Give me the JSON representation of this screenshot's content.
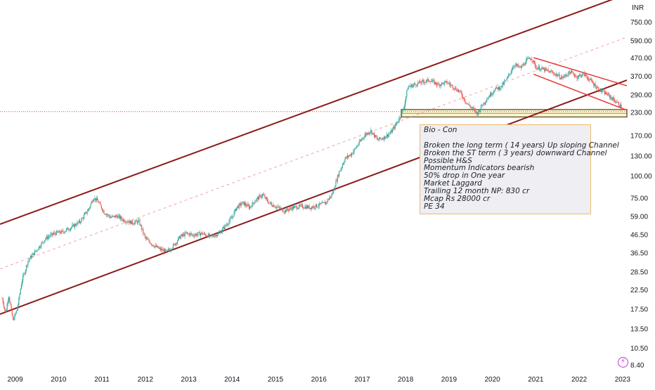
{
  "chart_data": {
    "type": "candlestick",
    "currency_label": "INR",
    "y_scale": "log",
    "ylim": [
      7.6,
      1000
    ],
    "y_ticks": [
      "750.00",
      "590.00",
      "470.00",
      "370.00",
      "290.00",
      "230.00",
      "170.00",
      "130.00",
      "100.00",
      "75.00",
      "59.00",
      "46.50",
      "36.50",
      "28.50",
      "22.50",
      "17.50",
      "13.50",
      "10.50",
      "8.40"
    ],
    "x_ticks": [
      "2009",
      "2010",
      "2011",
      "2012",
      "2013",
      "2014",
      "2015",
      "2016",
      "2017",
      "2018",
      "2019",
      "2020",
      "2021",
      "2022",
      "2023"
    ],
    "x_range_years": [
      2008.65,
      2023.1
    ],
    "current_price_line": 232,
    "price_path": [
      [
        2008.7,
        20
      ],
      [
        2008.78,
        16.5
      ],
      [
        2008.85,
        21
      ],
      [
        2008.95,
        15
      ],
      [
        2009.05,
        17.5
      ],
      [
        2009.15,
        25
      ],
      [
        2009.3,
        33
      ],
      [
        2009.5,
        38
      ],
      [
        2009.7,
        44
      ],
      [
        2009.9,
        47
      ],
      [
        2010.1,
        48
      ],
      [
        2010.3,
        51
      ],
      [
        2010.5,
        55
      ],
      [
        2010.7,
        65
      ],
      [
        2010.8,
        75
      ],
      [
        2010.9,
        72
      ],
      [
        2011.05,
        62
      ],
      [
        2011.2,
        58
      ],
      [
        2011.35,
        59
      ],
      [
        2011.5,
        56
      ],
      [
        2011.7,
        54
      ],
      [
        2011.85,
        55
      ],
      [
        2012.0,
        44
      ],
      [
        2012.1,
        42
      ],
      [
        2012.2,
        40
      ],
      [
        2012.35,
        38
      ],
      [
        2012.5,
        37
      ],
      [
        2012.65,
        40
      ],
      [
        2012.8,
        45
      ],
      [
        2012.95,
        47
      ],
      [
        2013.1,
        46
      ],
      [
        2013.3,
        47
      ],
      [
        2013.5,
        45
      ],
      [
        2013.7,
        47
      ],
      [
        2013.85,
        52
      ],
      [
        2014.0,
        58
      ],
      [
        2014.1,
        66
      ],
      [
        2014.25,
        70
      ],
      [
        2014.4,
        66
      ],
      [
        2014.55,
        73
      ],
      [
        2014.7,
        78
      ],
      [
        2014.85,
        70
      ],
      [
        2015.0,
        67
      ],
      [
        2015.2,
        63
      ],
      [
        2015.4,
        66
      ],
      [
        2015.6,
        67
      ],
      [
        2015.8,
        66
      ],
      [
        2016.0,
        68
      ],
      [
        2016.15,
        70
      ],
      [
        2016.3,
        78
      ],
      [
        2016.45,
        102
      ],
      [
        2016.6,
        125
      ],
      [
        2016.75,
        133
      ],
      [
        2016.9,
        150
      ],
      [
        2017.05,
        170
      ],
      [
        2017.2,
        180
      ],
      [
        2017.35,
        160
      ],
      [
        2017.5,
        165
      ],
      [
        2017.65,
        175
      ],
      [
        2017.8,
        200
      ],
      [
        2017.95,
        240
      ],
      [
        2018.05,
        320
      ],
      [
        2018.2,
        330
      ],
      [
        2018.35,
        340
      ],
      [
        2018.55,
        350
      ],
      [
        2018.75,
        330
      ],
      [
        2018.95,
        340
      ],
      [
        2019.1,
        320
      ],
      [
        2019.25,
        300
      ],
      [
        2019.4,
        260
      ],
      [
        2019.55,
        240
      ],
      [
        2019.65,
        225
      ],
      [
        2019.75,
        250
      ],
      [
        2019.9,
        280
      ],
      [
        2020.05,
        310
      ],
      [
        2020.2,
        320
      ],
      [
        2020.35,
        360
      ],
      [
        2020.5,
        430
      ],
      [
        2020.65,
        410
      ],
      [
        2020.8,
        455
      ],
      [
        2020.9,
        470
      ],
      [
        2021.0,
        415
      ],
      [
        2021.2,
        400
      ],
      [
        2021.4,
        385
      ],
      [
        2021.6,
        360
      ],
      [
        2021.8,
        390
      ],
      [
        2021.95,
        365
      ],
      [
        2022.1,
        380
      ],
      [
        2022.25,
        350
      ],
      [
        2022.45,
        310
      ],
      [
        2022.65,
        290
      ],
      [
        2022.8,
        270
      ],
      [
        2022.95,
        250
      ],
      [
        2023.0,
        236
      ]
    ],
    "long_term_channel": {
      "upper": [
        [
          2008.65,
          53
        ],
        [
          2023.1,
          1080
        ]
      ],
      "lower": [
        [
          2008.65,
          16.3
        ],
        [
          2023.1,
          350
        ]
      ],
      "mid": [
        [
          2008.65,
          29.5
        ],
        [
          2023.1,
          615
        ]
      ]
    },
    "short_term_channel": {
      "upper": [
        [
          2020.95,
          470
        ],
        [
          2023.1,
          325
        ]
      ],
      "lower": [
        [
          2020.95,
          378
        ],
        [
          2023.1,
          236
        ]
      ]
    },
    "support_zone": [
      216,
      238
    ],
    "annotation": {
      "lines": [
        "Bio - Con",
        "",
        "Broken the long term ( 14 years) Up sloping Channel",
        "Broken the ST term ( 3 years) downward Channel",
        "Possible H&S",
        "Momentum Indicators bearish",
        "50% drop in One year",
        "Market Laggard",
        "Trailing 12 month NP: 830 cr",
        "Mcap Rs 28000 cr",
        "PE 34"
      ]
    },
    "colors": {
      "up": "#26a69a",
      "down": "#ef5350",
      "long_channel": "#8b1a1a",
      "short_channel": "#e53935",
      "mid_line": "#f4a3a3",
      "price_line": "#e53935",
      "zone_fill": "#fff6cc",
      "zone_border": "#5a5a3a",
      "axis_text": "#131722"
    }
  }
}
